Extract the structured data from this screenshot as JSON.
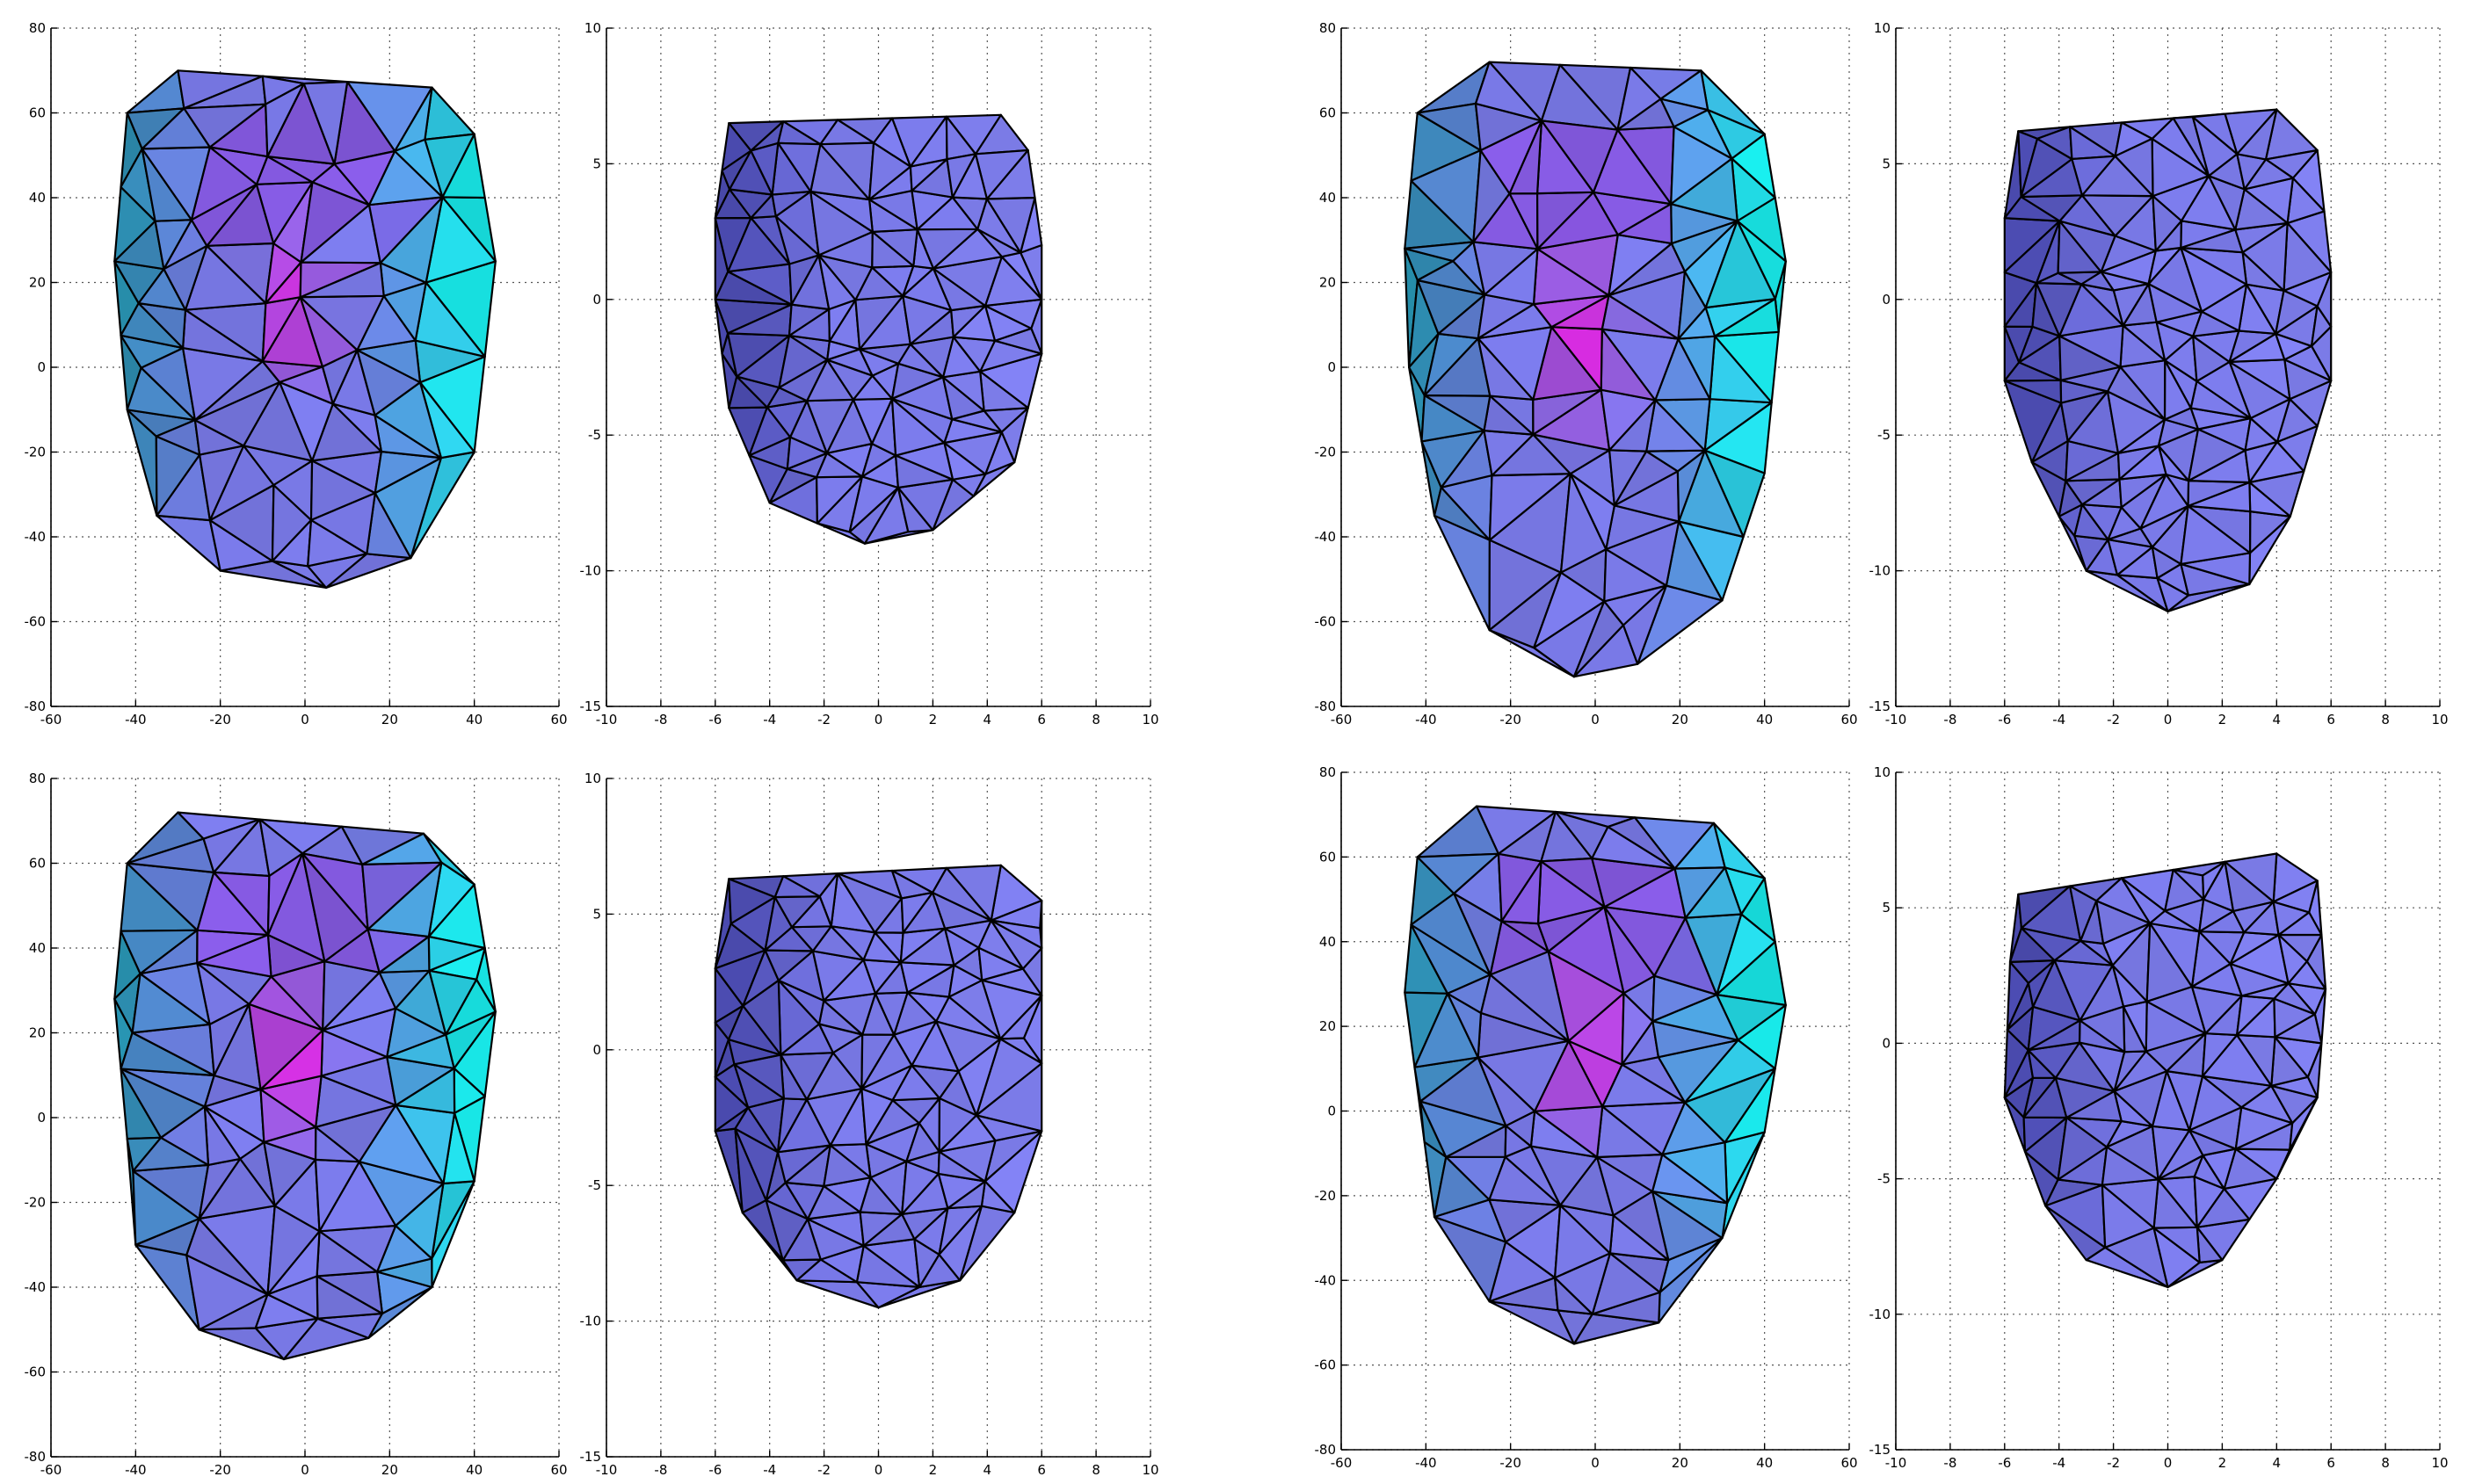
{
  "colors": {
    "background": "#ffffff",
    "grid": "#555555",
    "mesh_edge": "#000000",
    "mesh_mid": "#7f7ff2",
    "mesh_cyan": "#19f2f2",
    "mesh_magenta": "#e626e6",
    "mesh_dark": "#2b2b8a"
  },
  "chart_data": [
    {
      "type": "surface-mesh",
      "grid": true,
      "xlim": [
        -60,
        60
      ],
      "ylim": [
        -80,
        80
      ],
      "xticks": [
        "-60",
        "-40",
        "-20",
        "0",
        "20",
        "40",
        "60"
      ],
      "yticks": [
        "80",
        "60",
        "40",
        "20",
        "0",
        "-20",
        "-40",
        "-60",
        "-80"
      ],
      "shading": "colored",
      "outline": [
        [
          -30,
          70
        ],
        [
          30,
          66
        ],
        [
          40,
          55
        ],
        [
          45,
          25
        ],
        [
          40,
          -20
        ],
        [
          25,
          -45
        ],
        [
          5,
          -52
        ],
        [
          -20,
          -48
        ],
        [
          -35,
          -35
        ],
        [
          -42,
          -10
        ],
        [
          -45,
          25
        ],
        [
          -42,
          60
        ]
      ]
    },
    {
      "type": "surface-mesh",
      "grid": true,
      "xlim": [
        -10,
        10
      ],
      "ylim": [
        -15,
        10
      ],
      "xticks": [
        "-10",
        "-8",
        "-6",
        "-4",
        "-2",
        "0",
        "2",
        "4",
        "6",
        "8",
        "10"
      ],
      "yticks": [
        "10",
        "5",
        "0",
        "-5",
        "-10",
        "-15"
      ],
      "shading": "uniform",
      "outline": [
        [
          -5.5,
          6.5
        ],
        [
          4.5,
          6.8
        ],
        [
          5.5,
          5.5
        ],
        [
          6,
          2
        ],
        [
          6,
          -2
        ],
        [
          5,
          -6
        ],
        [
          2,
          -8.5
        ],
        [
          -0.5,
          -9
        ],
        [
          -4,
          -7.5
        ],
        [
          -5.5,
          -4
        ],
        [
          -6,
          0
        ],
        [
          -6,
          3
        ]
      ]
    },
    {
      "type": "surface-mesh",
      "grid": true,
      "xlim": [
        -60,
        60
      ],
      "ylim": [
        -80,
        80
      ],
      "xticks": [
        "-60",
        "-40",
        "-20",
        "0",
        "20",
        "40",
        "60"
      ],
      "yticks": [
        "80",
        "60",
        "40",
        "20",
        "0",
        "-20",
        "-40",
        "-60",
        "-80"
      ],
      "shading": "colored",
      "outline": [
        [
          -25,
          72
        ],
        [
          25,
          70
        ],
        [
          40,
          55
        ],
        [
          45,
          25
        ],
        [
          40,
          -25
        ],
        [
          30,
          -55
        ],
        [
          10,
          -70
        ],
        [
          -5,
          -73
        ],
        [
          -25,
          -62
        ],
        [
          -38,
          -35
        ],
        [
          -44,
          0
        ],
        [
          -45,
          28
        ],
        [
          -42,
          60
        ]
      ]
    },
    {
      "type": "surface-mesh",
      "grid": true,
      "xlim": [
        -10,
        10
      ],
      "ylim": [
        -15,
        10
      ],
      "xticks": [
        "-10",
        "-8",
        "-6",
        "-4",
        "-2",
        "0",
        "2",
        "4",
        "6",
        "8",
        "10"
      ],
      "yticks": [
        "10",
        "5",
        "0",
        "-5",
        "-10",
        "-15"
      ],
      "shading": "uniform",
      "outline": [
        [
          -5.5,
          6.2
        ],
        [
          4,
          7
        ],
        [
          5.5,
          5.5
        ],
        [
          6,
          1
        ],
        [
          6,
          -3
        ],
        [
          4.5,
          -8
        ],
        [
          3,
          -10.5
        ],
        [
          0,
          -11.5
        ],
        [
          -3,
          -10
        ],
        [
          -5,
          -6
        ],
        [
          -6,
          -3
        ],
        [
          -6,
          3
        ]
      ]
    },
    {
      "type": "surface-mesh",
      "grid": true,
      "xlim": [
        -60,
        60
      ],
      "ylim": [
        -80,
        80
      ],
      "xticks": [
        "-60",
        "-40",
        "-20",
        "0",
        "20",
        "40",
        "60"
      ],
      "yticks": [
        "80",
        "60",
        "40",
        "20",
        "0",
        "-20",
        "-40",
        "-60",
        "-80"
      ],
      "shading": "colored",
      "outline": [
        [
          -30,
          72
        ],
        [
          28,
          67
        ],
        [
          40,
          55
        ],
        [
          45,
          25
        ],
        [
          40,
          -15
        ],
        [
          30,
          -40
        ],
        [
          15,
          -52
        ],
        [
          -5,
          -57
        ],
        [
          -25,
          -50
        ],
        [
          -40,
          -30
        ],
        [
          -42,
          -5
        ],
        [
          -45,
          28
        ],
        [
          -42,
          60
        ]
      ]
    },
    {
      "type": "surface-mesh",
      "grid": true,
      "xlim": [
        -10,
        10
      ],
      "ylim": [
        -15,
        10
      ],
      "xticks": [
        "-10",
        "-8",
        "-6",
        "-4",
        "-2",
        "0",
        "2",
        "4",
        "6",
        "8",
        "10"
      ],
      "yticks": [
        "10",
        "5",
        "0",
        "-5",
        "-10",
        "-15"
      ],
      "shading": "uniform",
      "outline": [
        [
          -5.5,
          6.3
        ],
        [
          4.5,
          6.8
        ],
        [
          6,
          5.5
        ],
        [
          6,
          2
        ],
        [
          6,
          -3
        ],
        [
          5,
          -6
        ],
        [
          3,
          -8.5
        ],
        [
          0,
          -9.5
        ],
        [
          -3,
          -8.5
        ],
        [
          -5,
          -6
        ],
        [
          -6,
          -3
        ],
        [
          -6,
          3
        ]
      ]
    },
    {
      "type": "surface-mesh",
      "grid": true,
      "xlim": [
        -60,
        60
      ],
      "ylim": [
        -80,
        80
      ],
      "xticks": [
        "-60",
        "-40",
        "-20",
        "0",
        "20",
        "40",
        "60"
      ],
      "yticks": [
        "80",
        "60",
        "40",
        "20",
        "0",
        "-20",
        "-40",
        "-60",
        "-80"
      ],
      "shading": "colored",
      "outline": [
        [
          -28,
          72
        ],
        [
          28,
          68
        ],
        [
          40,
          55
        ],
        [
          45,
          25
        ],
        [
          40,
          -5
        ],
        [
          30,
          -30
        ],
        [
          15,
          -50
        ],
        [
          -5,
          -55
        ],
        [
          -25,
          -45
        ],
        [
          -38,
          -25
        ],
        [
          -45,
          28
        ],
        [
          -42,
          60
        ]
      ]
    },
    {
      "type": "surface-mesh",
      "grid": true,
      "xlim": [
        -10,
        10
      ],
      "ylim": [
        -15,
        10
      ],
      "xticks": [
        "-10",
        "-8",
        "-6",
        "-4",
        "-2",
        "0",
        "2",
        "4",
        "6",
        "8",
        "10"
      ],
      "yticks": [
        "10",
        "5",
        "0",
        "-5",
        "-10",
        "-15"
      ],
      "shading": "uniform",
      "outline": [
        [
          -5.5,
          5.5
        ],
        [
          4,
          7
        ],
        [
          5.5,
          6
        ],
        [
          5.8,
          2
        ],
        [
          5.5,
          -2
        ],
        [
          4,
          -5
        ],
        [
          2,
          -8
        ],
        [
          0,
          -9
        ],
        [
          -3,
          -8
        ],
        [
          -4.5,
          -6
        ],
        [
          -6,
          -2
        ],
        [
          -5.8,
          3
        ]
      ]
    }
  ]
}
